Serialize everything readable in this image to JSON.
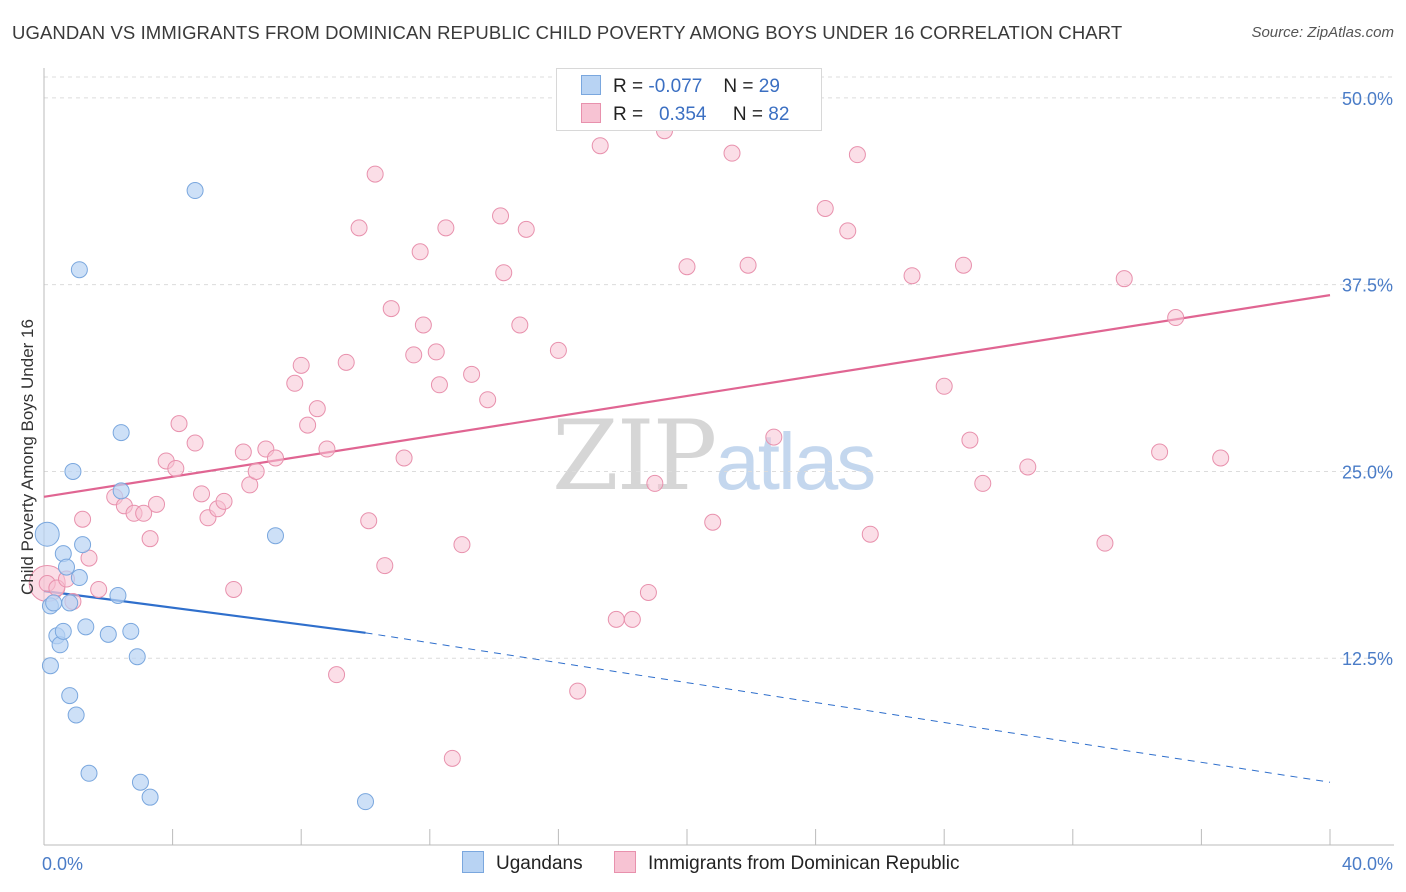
{
  "header": {
    "title": "UGANDAN VS IMMIGRANTS FROM DOMINICAN REPUBLIC CHILD POVERTY AMONG BOYS UNDER 16 CORRELATION CHART",
    "source": "Source: ZipAtlas.com"
  },
  "legend_top": {
    "rows": [
      {
        "r_label": "R =",
        "r_value": "-0.077",
        "n_label": "N =",
        "n_value": "29"
      },
      {
        "r_label": "R =",
        "r_value": "0.354",
        "n_label": "N =",
        "n_value": "82"
      }
    ]
  },
  "legend_bottom": {
    "series_1": "Ugandans",
    "series_2": "Immigrants from Dominican Republic"
  },
  "watermark": {
    "zip": "ZIP",
    "atlas": "atlas"
  },
  "colors": {
    "ugandan_fill": "#b8d3f3",
    "ugandan_stroke": "#7aa7de",
    "ugandan_line": "#2f6fcc",
    "dominican_fill": "#f7c3d3",
    "dominican_stroke": "#e891ad",
    "dominican_line": "#e06592",
    "tick_text": "#4a7cc7",
    "grid": "#dcdcdc"
  },
  "chart_data": {
    "type": "scatter",
    "title": "UGANDAN VS IMMIGRANTS FROM DOMINICAN REPUBLIC CHILD POVERTY AMONG BOYS UNDER 16 CORRELATION CHART",
    "xlabel": "",
    "ylabel": "Child Poverty Among Boys Under 16",
    "xlim": [
      0,
      40
    ],
    "ylim": [
      0,
      52
    ],
    "x_tick_labels": [
      "0.0%",
      "40.0%"
    ],
    "y_ticks": [
      12.5,
      25.0,
      37.5,
      50.0
    ],
    "y_tick_labels": [
      "12.5%",
      "25.0%",
      "37.5%",
      "50.0%"
    ],
    "x_minor_ticks": [
      4,
      8,
      12,
      16,
      20,
      24,
      28,
      32,
      36,
      40
    ],
    "grid": true,
    "series": [
      {
        "name": "Ugandans",
        "R": -0.077,
        "N": 29,
        "trend": {
          "x0": 0,
          "y0": 17.0,
          "x1": 10,
          "y1": 14.2,
          "dashed_to_x": 40,
          "dashed_to_y": 4.2
        },
        "points": [
          [
            0.1,
            20.8
          ],
          [
            0.2,
            16.0
          ],
          [
            0.2,
            12.0
          ],
          [
            0.3,
            16.2
          ],
          [
            0.4,
            14.0
          ],
          [
            0.5,
            13.4
          ],
          [
            0.6,
            19.5
          ],
          [
            0.6,
            14.3
          ],
          [
            0.7,
            18.6
          ],
          [
            0.8,
            16.2
          ],
          [
            0.8,
            10.0
          ],
          [
            0.9,
            25.0
          ],
          [
            1.0,
            8.7
          ],
          [
            1.1,
            38.5
          ],
          [
            1.1,
            17.9
          ],
          [
            1.2,
            20.1
          ],
          [
            1.3,
            14.6
          ],
          [
            1.4,
            4.8
          ],
          [
            2.0,
            14.1
          ],
          [
            2.3,
            16.7
          ],
          [
            2.4,
            27.6
          ],
          [
            2.4,
            23.7
          ],
          [
            2.7,
            14.3
          ],
          [
            2.9,
            12.6
          ],
          [
            3.0,
            4.2
          ],
          [
            3.3,
            3.2
          ],
          [
            4.7,
            43.8
          ],
          [
            7.2,
            20.7
          ],
          [
            10.0,
            2.9
          ]
        ]
      },
      {
        "name": "Immigrants from Dominican Republic",
        "R": 0.354,
        "N": 82,
        "trend": {
          "x0": 0,
          "y0": 23.3,
          "x1": 40,
          "y1": 36.8
        },
        "points": [
          [
            0.1,
            17.5
          ],
          [
            0.4,
            17.2
          ],
          [
            0.7,
            17.8
          ],
          [
            0.9,
            16.3
          ],
          [
            1.2,
            21.8
          ],
          [
            1.4,
            19.2
          ],
          [
            1.7,
            17.1
          ],
          [
            2.2,
            23.3
          ],
          [
            2.5,
            22.7
          ],
          [
            2.8,
            22.2
          ],
          [
            3.1,
            22.2
          ],
          [
            3.3,
            20.5
          ],
          [
            3.5,
            22.8
          ],
          [
            3.8,
            25.7
          ],
          [
            4.1,
            25.2
          ],
          [
            4.2,
            28.2
          ],
          [
            4.7,
            26.9
          ],
          [
            4.9,
            23.5
          ],
          [
            5.1,
            21.9
          ],
          [
            5.4,
            22.5
          ],
          [
            5.6,
            23.0
          ],
          [
            5.9,
            17.1
          ],
          [
            6.2,
            26.3
          ],
          [
            6.4,
            24.1
          ],
          [
            6.6,
            25.0
          ],
          [
            6.9,
            26.5
          ],
          [
            7.2,
            25.9
          ],
          [
            7.8,
            30.9
          ],
          [
            8.0,
            32.1
          ],
          [
            8.2,
            28.1
          ],
          [
            8.5,
            29.2
          ],
          [
            8.8,
            26.5
          ],
          [
            9.1,
            11.4
          ],
          [
            9.4,
            32.3
          ],
          [
            9.8,
            41.3
          ],
          [
            10.1,
            21.7
          ],
          [
            10.3,
            44.9
          ],
          [
            10.6,
            18.7
          ],
          [
            10.8,
            35.9
          ],
          [
            11.2,
            25.9
          ],
          [
            11.5,
            32.8
          ],
          [
            11.7,
            39.7
          ],
          [
            11.8,
            34.8
          ],
          [
            12.2,
            33.0
          ],
          [
            12.3,
            30.8
          ],
          [
            12.5,
            41.3
          ],
          [
            12.7,
            5.8
          ],
          [
            13.0,
            20.1
          ],
          [
            13.3,
            31.5
          ],
          [
            13.8,
            29.8
          ],
          [
            14.2,
            42.1
          ],
          [
            14.3,
            38.3
          ],
          [
            14.8,
            34.8
          ],
          [
            15.0,
            41.2
          ],
          [
            16.0,
            33.1
          ],
          [
            16.6,
            10.3
          ],
          [
            17.3,
            46.8
          ],
          [
            17.8,
            15.1
          ],
          [
            18.3,
            15.1
          ],
          [
            18.8,
            16.9
          ],
          [
            19.0,
            24.2
          ],
          [
            19.3,
            47.8
          ],
          [
            20.0,
            38.7
          ],
          [
            20.8,
            21.6
          ],
          [
            21.4,
            46.3
          ],
          [
            21.9,
            38.8
          ],
          [
            22.7,
            27.3
          ],
          [
            24.3,
            42.6
          ],
          [
            25.0,
            41.1
          ],
          [
            25.3,
            46.2
          ],
          [
            25.7,
            20.8
          ],
          [
            27.0,
            38.1
          ],
          [
            28.0,
            30.7
          ],
          [
            28.6,
            38.8
          ],
          [
            28.8,
            27.1
          ],
          [
            29.2,
            24.2
          ],
          [
            30.6,
            25.3
          ],
          [
            33.0,
            20.2
          ],
          [
            33.6,
            37.9
          ],
          [
            34.7,
            26.3
          ],
          [
            35.2,
            35.3
          ],
          [
            36.6,
            25.9
          ]
        ]
      }
    ]
  }
}
